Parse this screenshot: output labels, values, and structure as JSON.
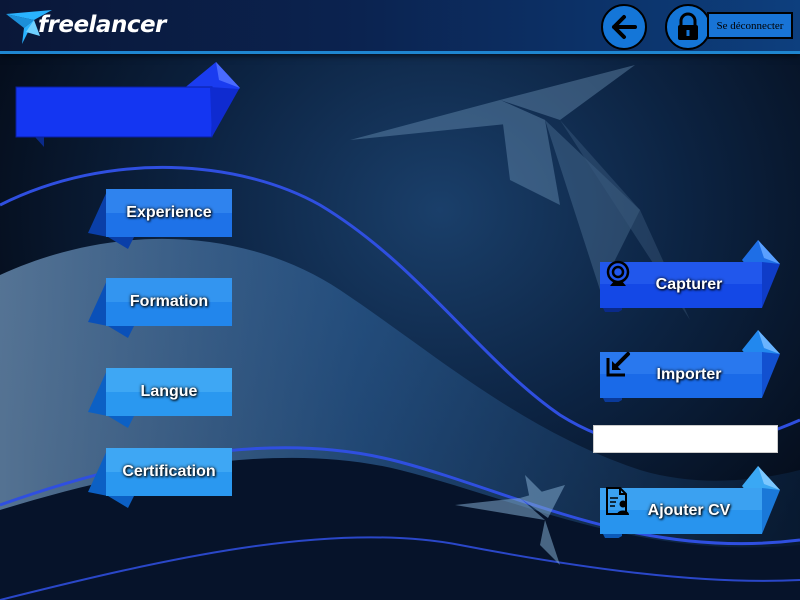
{
  "header": {
    "logo_text": "freelancer",
    "back_icon": "arrow-left-icon",
    "lock_icon": "lock-icon",
    "logout_label": "Se déconnecter"
  },
  "title_ribbon": {
    "label": ""
  },
  "left_menu": {
    "items": [
      {
        "label": "Experience"
      },
      {
        "label": "Formation"
      },
      {
        "label": "Langue"
      },
      {
        "label": "Certification"
      }
    ]
  },
  "right_actions": {
    "capture_label": "Capturer",
    "capture_icon": "webcam-icon",
    "import_label": "Importer",
    "import_icon": "import-arrow-icon",
    "file_value": "",
    "add_cv_label": "Ajouter CV",
    "add_cv_icon": "cv-document-icon"
  },
  "colors": {
    "accent": "#1476d8",
    "ribbon_light": "#2ba0f0",
    "ribbon_dark": "#0a3fa8",
    "header_line": "#1f86d0"
  }
}
